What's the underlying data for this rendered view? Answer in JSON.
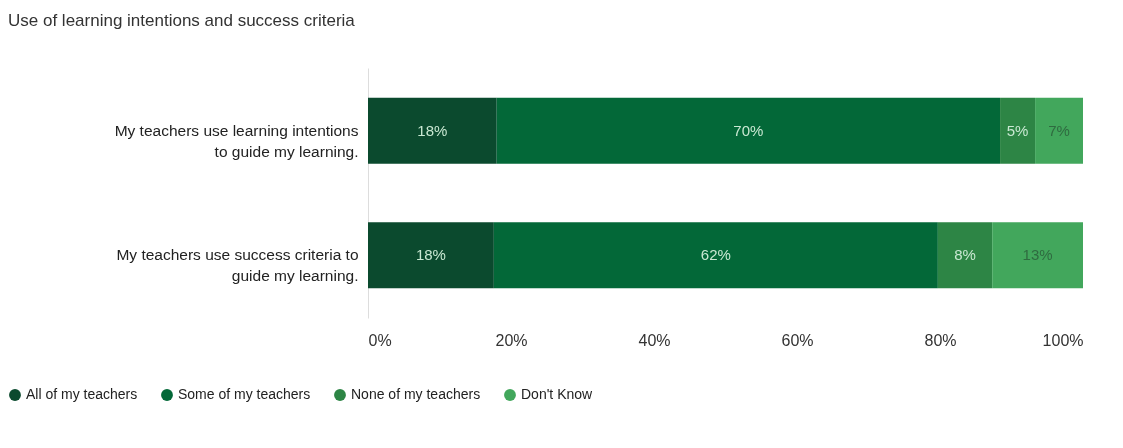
{
  "chart_data": {
    "type": "bar",
    "orientation": "horizontal",
    "stacked": true,
    "title": "Use of learning intentions and success criteria",
    "categories": [
      "My teachers use learning intentions to guide my learning.",
      "My teachers use success criteria to guide my learning."
    ],
    "series": [
      {
        "name": "All of my teachers",
        "color": "#0b4a2e",
        "values": [
          18,
          17.6
        ],
        "value_labels": [
          "18%",
          "18%"
        ]
      },
      {
        "name": "Some of my teachers",
        "color": "#036838",
        "values": [
          70.4,
          62.1
        ],
        "value_labels": [
          "70%",
          "62%"
        ]
      },
      {
        "name": "None of my teachers",
        "color": "#2d8545",
        "values": [
          4.9,
          7.6
        ],
        "value_labels": [
          "5%",
          "8%"
        ]
      },
      {
        "name": "Don't Know",
        "color": "#42a75c",
        "values": [
          6.7,
          12.7
        ],
        "value_labels": [
          "7%",
          "13%"
        ]
      }
    ],
    "xlim": [
      0,
      100
    ],
    "xticks": [
      {
        "value": 0,
        "label": "0%"
      },
      {
        "value": 20,
        "label": "20%"
      },
      {
        "value": 40,
        "label": "40%"
      },
      {
        "value": 60,
        "label": "60%"
      },
      {
        "value": 80,
        "label": "80%"
      },
      {
        "value": 100,
        "label": "100%"
      }
    ],
    "grid": false,
    "legend": "bottom left"
  }
}
